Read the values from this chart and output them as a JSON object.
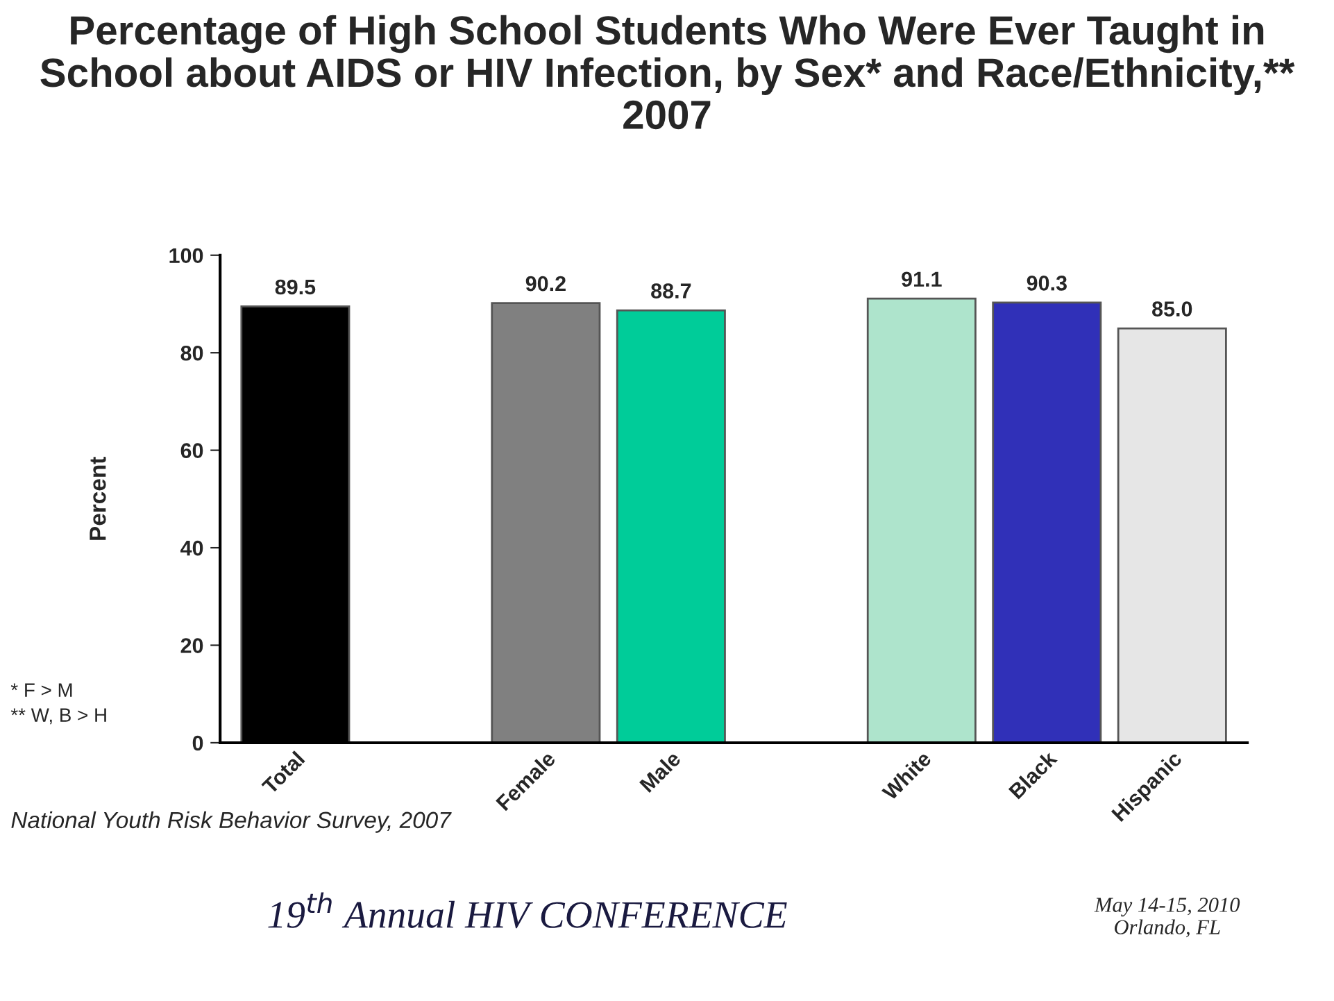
{
  "chart_data": {
    "type": "bar",
    "title": "Percentage of High School Students Who Were Ever Taught in School about AIDS or HIV Infection, by Sex* and Race/Ethnicity,** 2007",
    "ylabel": "Percent",
    "categories": [
      "Total",
      null,
      "Female",
      "Male",
      null,
      "White",
      "Black",
      "Hispanic"
    ],
    "values": [
      89.5,
      null,
      90.2,
      88.7,
      null,
      91.1,
      90.3,
      85.0
    ],
    "value_labels": [
      "89.5",
      null,
      "90.2",
      "88.7",
      null,
      "91.1",
      "90.3",
      "85.0"
    ],
    "colors": [
      "#000000",
      "#ffffff",
      "#808080",
      "#00cc99",
      "#ffffff",
      "#aee4cc",
      "#3030b8",
      "#e6e6e6"
    ],
    "ylim": [
      0,
      100
    ],
    "yticks": [
      0,
      20,
      40,
      60,
      80,
      100
    ],
    "grid": false,
    "annotations": [
      "* F > M",
      "** W, B > H",
      "National Youth Risk Behavior Survey, 2007",
      "19$^{th}$ Annual HIV CONFERENCE",
      "May 14-15, 2010\nOrlando, FL"
    ]
  }
}
